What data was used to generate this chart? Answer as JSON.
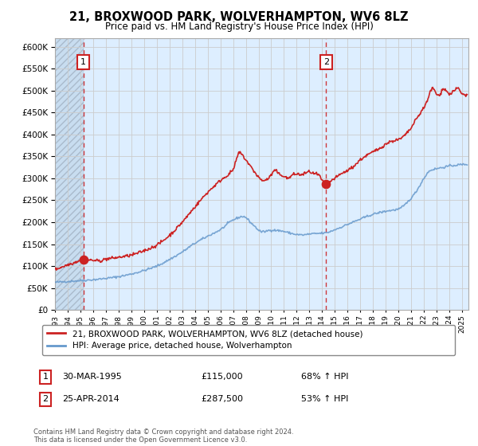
{
  "title": "21, BROXWOOD PARK, WOLVERHAMPTON, WV6 8LZ",
  "subtitle": "Price paid vs. HM Land Registry's House Price Index (HPI)",
  "legend_line1": "21, BROXWOOD PARK, WOLVERHAMPTON, WV6 8LZ (detached house)",
  "legend_line2": "HPI: Average price, detached house, Wolverhampton",
  "sale1_date": "30-MAR-1995",
  "sale1_price": "£115,000",
  "sale1_hpi": "68% ↑ HPI",
  "sale1_year": 1995.24,
  "sale1_value": 115000,
  "sale2_date": "25-APR-2014",
  "sale2_price": "£287,500",
  "sale2_hpi": "53% ↑ HPI",
  "sale2_year": 2014.32,
  "sale2_value": 287500,
  "red_color": "#cc2222",
  "blue_color": "#6699cc",
  "grid_color": "#cccccc",
  "bg_color": "#ddeeff",
  "hatch_color": "#bbccdd",
  "ylim": [
    0,
    620000
  ],
  "xlim_start": 1993.0,
  "xlim_end": 2025.5,
  "footnote": "Contains HM Land Registry data © Crown copyright and database right 2024.\nThis data is licensed under the Open Government Licence v3.0."
}
